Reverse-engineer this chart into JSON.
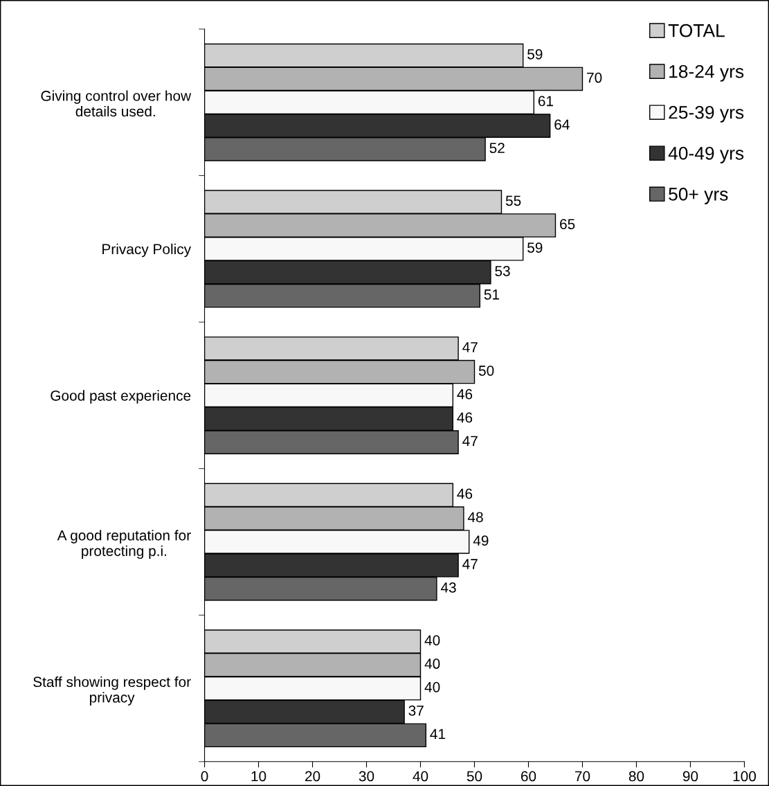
{
  "chart_data": {
    "type": "bar",
    "orientation": "horizontal",
    "categories": [
      "Giving control over how details used.",
      "Privacy Policy",
      "Good past experience",
      "A good reputation for protecting p.i.",
      "Staff showing respect for privacy"
    ],
    "series": [
      {
        "name": "TOTAL",
        "color": "#cfcfcf",
        "values": [
          59,
          55,
          47,
          46,
          40
        ]
      },
      {
        "name": "18-24 yrs",
        "color": "#b2b2b2",
        "values": [
          70,
          65,
          50,
          48,
          40
        ]
      },
      {
        "name": "25-39 yrs",
        "color": "#f8f8f8",
        "values": [
          61,
          59,
          46,
          49,
          40
        ]
      },
      {
        "name": "40-49 yrs",
        "color": "#333333",
        "values": [
          64,
          53,
          46,
          47,
          37
        ]
      },
      {
        "name": "50+ yrs",
        "color": "#666666",
        "values": [
          52,
          51,
          47,
          43,
          41
        ]
      }
    ],
    "xlim": [
      0,
      100
    ],
    "xticks": [
      0,
      10,
      20,
      30,
      40,
      50,
      60,
      70,
      80,
      90,
      100
    ],
    "data_labels": true,
    "legend": "top right",
    "grid": false
  }
}
